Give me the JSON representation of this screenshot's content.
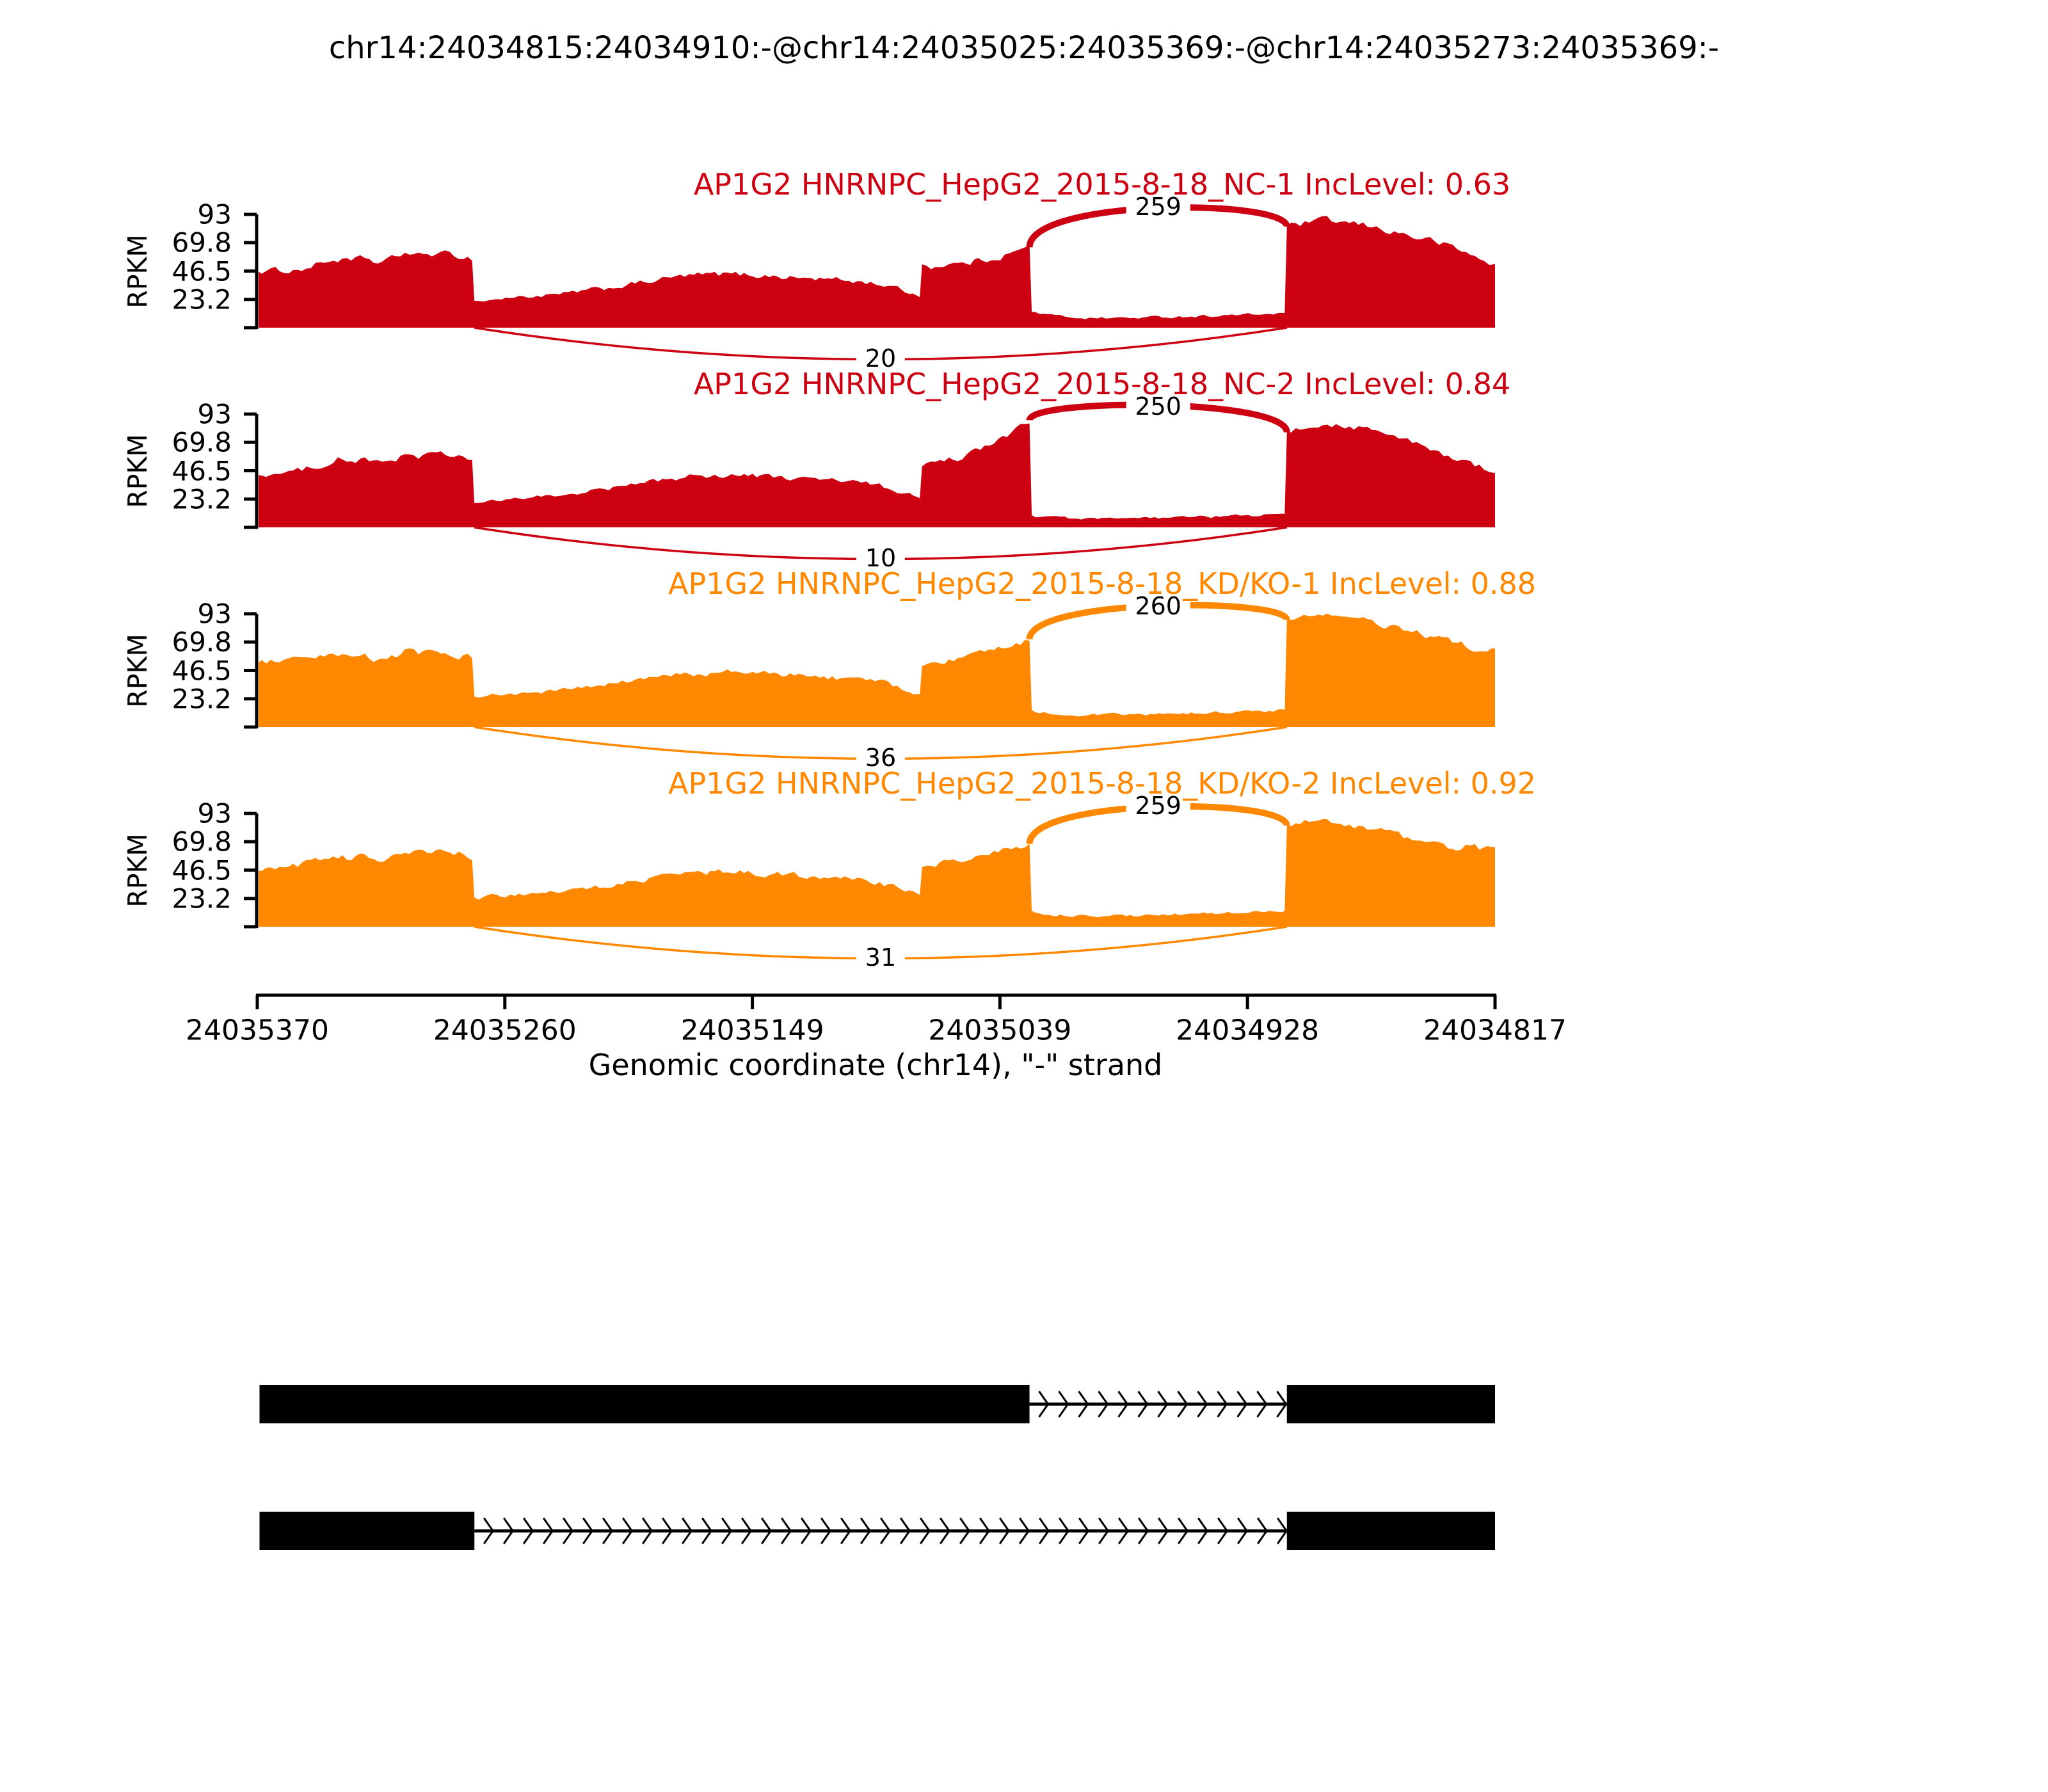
{
  "chart_data": {
    "type": "area",
    "title": "chr14:24034815:24034910:-@chr14:24035025:24035369:-@chr14:24035273:24035369:-",
    "xlabel": "Genomic coordinate (chr14), \"-\" strand",
    "ylabel": "RPKM",
    "x_tick_labels": [
      "24035370",
      "24035260",
      "24035149",
      "24035039",
      "24034928",
      "24034817"
    ],
    "y_tick_labels": [
      "93",
      "69.8",
      "46.5",
      "23.2"
    ],
    "y_tick_values": [
      93,
      69.8,
      46.5,
      23.2
    ],
    "ymax": 93,
    "coord_start": 24035370,
    "coord_end": 24034817,
    "strand": "-",
    "colors": {
      "group1": "#CC0011",
      "group2": "#FF8800",
      "text": "#000000",
      "gene_model": "#000000"
    },
    "tracks": [
      {
        "label": "AP1G2 HNRNPC_HepG2_2015-8-18_NC-1 IncLevel: 0.63",
        "color": "#CC0011",
        "inclevel": 0.63,
        "inclusion_junction": {
          "from": 24035025,
          "to": 24034910,
          "count": 259
        },
        "skipping_junction": {
          "from": 24035273,
          "to": 24034910,
          "count": 20
        },
        "profile": [
          [
            0,
            46
          ],
          [
            8,
            47
          ],
          [
            16,
            47
          ],
          [
            24,
            50
          ],
          [
            30,
            54
          ],
          [
            36,
            56
          ],
          [
            42,
            54
          ],
          [
            48,
            57
          ],
          [
            54,
            53
          ],
          [
            60,
            56
          ],
          [
            66,
            62
          ],
          [
            72,
            59
          ],
          [
            78,
            61
          ],
          [
            84,
            60
          ],
          [
            90,
            59
          ],
          [
            96,
            57
          ],
          [
            97,
            22
          ],
          [
            105,
            23
          ],
          [
            115,
            25
          ],
          [
            125,
            26
          ],
          [
            135,
            27
          ],
          [
            145,
            30
          ],
          [
            155,
            32
          ],
          [
            165,
            35
          ],
          [
            175,
            38
          ],
          [
            185,
            41
          ],
          [
            195,
            43
          ],
          [
            210,
            44
          ],
          [
            225,
            43
          ],
          [
            240,
            41
          ],
          [
            255,
            40
          ],
          [
            268,
            38
          ],
          [
            278,
            36
          ],
          [
            286,
            32
          ],
          [
            293,
            28
          ],
          [
            296,
            25
          ],
          [
            297,
            52
          ],
          [
            303,
            50
          ],
          [
            309,
            53
          ],
          [
            315,
            52
          ],
          [
            322,
            55
          ],
          [
            328,
            57
          ],
          [
            334,
            60
          ],
          [
            340,
            63
          ],
          [
            345,
            66
          ],
          [
            346,
            13
          ],
          [
            355,
            10
          ],
          [
            370,
            8
          ],
          [
            390,
            8
          ],
          [
            410,
            9
          ],
          [
            430,
            10
          ],
          [
            450,
            11
          ],
          [
            458,
            12
          ],
          [
            459,
            12
          ],
          [
            460,
            83
          ],
          [
            466,
            85
          ],
          [
            472,
            87
          ],
          [
            478,
            88
          ],
          [
            486,
            86
          ],
          [
            494,
            84
          ],
          [
            502,
            81
          ],
          [
            510,
            78
          ],
          [
            518,
            74
          ],
          [
            526,
            71
          ],
          [
            534,
            66
          ],
          [
            542,
            60
          ],
          [
            548,
            55
          ],
          [
            553,
            52
          ]
        ]
      },
      {
        "label": "AP1G2 HNRNPC_HepG2_2015-8-18_NC-2 IncLevel: 0.84",
        "color": "#CC0011",
        "inclevel": 0.84,
        "inclusion_junction": {
          "from": 24035025,
          "to": 24034910,
          "count": 250
        },
        "skipping_junction": {
          "from": 24035273,
          "to": 24034910,
          "count": 10
        },
        "profile": [
          [
            0,
            43
          ],
          [
            8,
            44
          ],
          [
            16,
            45
          ],
          [
            24,
            49
          ],
          [
            30,
            53
          ],
          [
            36,
            56
          ],
          [
            42,
            54
          ],
          [
            48,
            56
          ],
          [
            54,
            52
          ],
          [
            60,
            55
          ],
          [
            66,
            60
          ],
          [
            72,
            58
          ],
          [
            78,
            60
          ],
          [
            84,
            59
          ],
          [
            90,
            58
          ],
          [
            96,
            56
          ],
          [
            97,
            20
          ],
          [
            105,
            21
          ],
          [
            115,
            23
          ],
          [
            125,
            25
          ],
          [
            135,
            26
          ],
          [
            145,
            29
          ],
          [
            155,
            31
          ],
          [
            165,
            34
          ],
          [
            175,
            37
          ],
          [
            185,
            40
          ],
          [
            195,
            42
          ],
          [
            210,
            43
          ],
          [
            225,
            42
          ],
          [
            240,
            40
          ],
          [
            255,
            39
          ],
          [
            268,
            37
          ],
          [
            278,
            34
          ],
          [
            286,
            30
          ],
          [
            293,
            26
          ],
          [
            296,
            24
          ],
          [
            297,
            50
          ],
          [
            303,
            52
          ],
          [
            309,
            55
          ],
          [
            315,
            58
          ],
          [
            321,
            62
          ],
          [
            327,
            67
          ],
          [
            333,
            73
          ],
          [
            339,
            80
          ],
          [
            345,
            88
          ],
          [
            346,
            10
          ],
          [
            355,
            8
          ],
          [
            370,
            7
          ],
          [
            390,
            7
          ],
          [
            410,
            8
          ],
          [
            430,
            9
          ],
          [
            450,
            10
          ],
          [
            458,
            11
          ],
          [
            459,
            11
          ],
          [
            460,
            78
          ],
          [
            466,
            80
          ],
          [
            472,
            83
          ],
          [
            478,
            85
          ],
          [
            486,
            84
          ],
          [
            494,
            82
          ],
          [
            502,
            78
          ],
          [
            510,
            73
          ],
          [
            518,
            68
          ],
          [
            526,
            62
          ],
          [
            534,
            57
          ],
          [
            542,
            52
          ],
          [
            548,
            49
          ],
          [
            553,
            47
          ]
        ]
      },
      {
        "label": "AP1G2 HNRNPC_HepG2_2015-8-18_KD/KO-1 IncLevel: 0.88",
        "color": "#FF8800",
        "inclevel": 0.88,
        "inclusion_junction": {
          "from": 24035025,
          "to": 24034910,
          "count": 260
        },
        "skipping_junction": {
          "from": 24035273,
          "to": 24034910,
          "count": 36
        },
        "profile": [
          [
            0,
            53
          ],
          [
            8,
            54
          ],
          [
            16,
            54
          ],
          [
            24,
            55
          ],
          [
            30,
            57
          ],
          [
            36,
            58
          ],
          [
            42,
            56
          ],
          [
            48,
            58
          ],
          [
            54,
            55
          ],
          [
            60,
            57
          ],
          [
            66,
            62
          ],
          [
            72,
            60
          ],
          [
            78,
            61
          ],
          [
            84,
            60
          ],
          [
            90,
            59
          ],
          [
            96,
            58
          ],
          [
            97,
            25
          ],
          [
            105,
            26
          ],
          [
            115,
            27
          ],
          [
            125,
            28
          ],
          [
            135,
            30
          ],
          [
            145,
            32
          ],
          [
            155,
            34
          ],
          [
            165,
            37
          ],
          [
            175,
            40
          ],
          [
            185,
            42
          ],
          [
            195,
            44
          ],
          [
            210,
            45
          ],
          [
            225,
            44
          ],
          [
            240,
            43
          ],
          [
            255,
            41
          ],
          [
            268,
            39
          ],
          [
            278,
            37
          ],
          [
            286,
            33
          ],
          [
            293,
            29
          ],
          [
            296,
            27
          ],
          [
            297,
            50
          ],
          [
            303,
            52
          ],
          [
            309,
            54
          ],
          [
            315,
            56
          ],
          [
            321,
            59
          ],
          [
            327,
            62
          ],
          [
            333,
            66
          ],
          [
            339,
            69
          ],
          [
            345,
            72
          ],
          [
            346,
            14
          ],
          [
            355,
            11
          ],
          [
            370,
            10
          ],
          [
            390,
            10
          ],
          [
            410,
            11
          ],
          [
            430,
            12
          ],
          [
            450,
            13
          ],
          [
            458,
            14
          ],
          [
            459,
            14
          ],
          [
            460,
            88
          ],
          [
            465,
            91
          ],
          [
            470,
            93
          ],
          [
            476,
            92
          ],
          [
            484,
            90
          ],
          [
            492,
            88
          ],
          [
            500,
            85
          ],
          [
            508,
            82
          ],
          [
            516,
            78
          ],
          [
            524,
            74
          ],
          [
            532,
            70
          ],
          [
            540,
            67
          ],
          [
            546,
            64
          ],
          [
            553,
            62
          ]
        ]
      },
      {
        "label": "AP1G2 HNRNPC_HepG2_2015-8-18_KD/KO-2 IncLevel: 0.92",
        "color": "#FF8800",
        "inclevel": 0.92,
        "inclusion_junction": {
          "from": 24035025,
          "to": 24034910,
          "count": 259
        },
        "skipping_junction": {
          "from": 24035273,
          "to": 24034910,
          "count": 31
        },
        "profile": [
          [
            0,
            46
          ],
          [
            8,
            48
          ],
          [
            16,
            50
          ],
          [
            24,
            53
          ],
          [
            30,
            56
          ],
          [
            36,
            58
          ],
          [
            42,
            56
          ],
          [
            48,
            58
          ],
          [
            54,
            55
          ],
          [
            60,
            58
          ],
          [
            66,
            62
          ],
          [
            72,
            60
          ],
          [
            78,
            62
          ],
          [
            84,
            61
          ],
          [
            90,
            60
          ],
          [
            96,
            58
          ],
          [
            97,
            24
          ],
          [
            105,
            25
          ],
          [
            115,
            26
          ],
          [
            125,
            28
          ],
          [
            135,
            29
          ],
          [
            145,
            31
          ],
          [
            155,
            33
          ],
          [
            165,
            36
          ],
          [
            175,
            39
          ],
          [
            185,
            42
          ],
          [
            195,
            44
          ],
          [
            210,
            45
          ],
          [
            225,
            44
          ],
          [
            240,
            42
          ],
          [
            255,
            41
          ],
          [
            268,
            39
          ],
          [
            278,
            36
          ],
          [
            286,
            32
          ],
          [
            293,
            28
          ],
          [
            296,
            26
          ],
          [
            297,
            49
          ],
          [
            303,
            51
          ],
          [
            309,
            53
          ],
          [
            315,
            55
          ],
          [
            321,
            58
          ],
          [
            327,
            61
          ],
          [
            333,
            64
          ],
          [
            339,
            66
          ],
          [
            345,
            68
          ],
          [
            346,
            13
          ],
          [
            355,
            10
          ],
          [
            370,
            9
          ],
          [
            390,
            9
          ],
          [
            410,
            10
          ],
          [
            430,
            11
          ],
          [
            450,
            12
          ],
          [
            458,
            13
          ],
          [
            459,
            13
          ],
          [
            460,
            83
          ],
          [
            466,
            85
          ],
          [
            472,
            86
          ],
          [
            478,
            85
          ],
          [
            486,
            83
          ],
          [
            494,
            81
          ],
          [
            502,
            78
          ],
          [
            510,
            75
          ],
          [
            518,
            71
          ],
          [
            526,
            67
          ],
          [
            534,
            64
          ],
          [
            540,
            66
          ],
          [
            546,
            64
          ],
          [
            553,
            62
          ]
        ]
      }
    ],
    "gene_models": [
      {
        "exons": [
          [
            24035025,
            24035369
          ],
          [
            24034815,
            24034910
          ]
        ]
      },
      {
        "exons": [
          [
            24035273,
            24035369
          ],
          [
            24034815,
            24034910
          ]
        ]
      }
    ]
  }
}
